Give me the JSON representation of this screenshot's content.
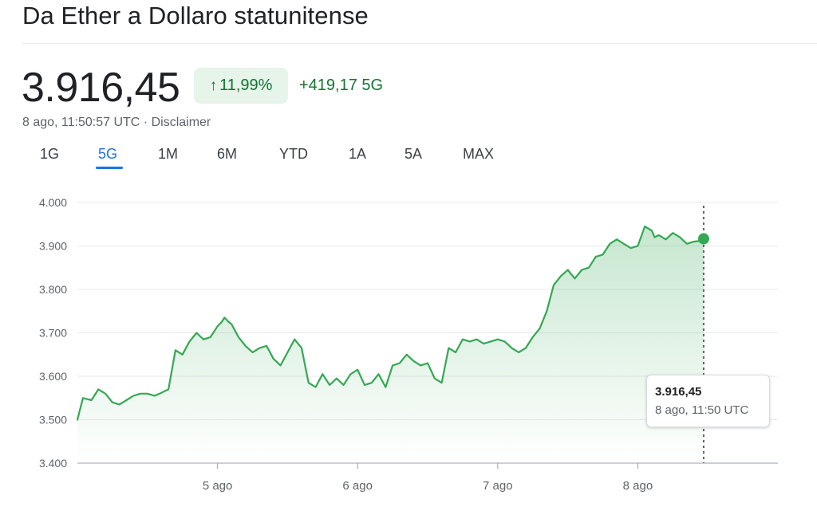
{
  "header": {
    "title": "Da Ether a Dollaro statunitense"
  },
  "quote": {
    "price": "3.916,45",
    "change_percent": "11,99%",
    "change_arrow_icon": "arrow-up-icon",
    "change_abs": "+419,17 5G",
    "timestamp": "8 ago, 11:50:57 UTC · ",
    "disclaimer": "Disclaimer"
  },
  "tabs": [
    "1G",
    "5G",
    "1M",
    "6M",
    "YTD",
    "1A",
    "5A",
    "MAX"
  ],
  "active_tab": "5G",
  "colors": {
    "line": "#34a853",
    "positive_text": "#137333",
    "positive_bg": "#e6f4ea",
    "accent": "#1a73e8"
  },
  "tooltip": {
    "value": "3.916,45",
    "time": "8 ago, 11:50 UTC"
  },
  "chart_data": {
    "type": "area",
    "x_tick_labels": [
      "5 ago",
      "6 ago",
      "7 ago",
      "8 ago"
    ],
    "y_tick_labels": [
      "4.000",
      "3.900",
      "3.800",
      "3.700",
      "3.600",
      "3.500",
      "3.400"
    ],
    "ylim": [
      3400,
      4000
    ],
    "xlim": [
      0,
      5
    ],
    "grid": true,
    "series": [
      {
        "x": [
          0.0,
          0.04,
          0.1,
          0.15,
          0.2,
          0.25,
          0.3,
          0.35,
          0.4,
          0.45,
          0.5,
          0.55,
          0.6,
          0.65,
          0.7,
          0.75,
          0.8,
          0.85,
          0.9,
          0.95,
          1.0,
          1.03,
          1.05,
          1.08,
          1.1,
          1.15,
          1.2,
          1.25,
          1.3,
          1.35,
          1.4,
          1.45,
          1.5,
          1.55,
          1.6,
          1.65,
          1.7,
          1.75,
          1.8,
          1.85,
          1.9,
          1.95,
          2.0,
          2.05,
          2.1,
          2.15,
          2.2,
          2.25,
          2.3,
          2.35,
          2.4,
          2.45,
          2.5,
          2.55,
          2.6,
          2.65,
          2.7,
          2.75,
          2.8,
          2.85,
          2.9,
          2.95,
          3.0,
          3.05,
          3.1,
          3.15,
          3.2,
          3.25,
          3.3,
          3.35,
          3.4,
          3.45,
          3.5,
          3.55,
          3.6,
          3.65,
          3.7,
          3.75,
          3.8,
          3.85,
          3.9,
          3.95,
          4.0,
          4.05,
          4.1,
          4.12,
          4.15,
          4.2,
          4.25,
          4.3,
          4.35,
          4.4,
          4.45,
          4.47
        ],
        "y": [
          3500,
          3550,
          3545,
          3570,
          3560,
          3540,
          3535,
          3545,
          3555,
          3560,
          3560,
          3555,
          3562,
          3570,
          3660,
          3650,
          3680,
          3700,
          3685,
          3690,
          3715,
          3725,
          3735,
          3725,
          3720,
          3690,
          3670,
          3655,
          3665,
          3670,
          3640,
          3625,
          3655,
          3685,
          3665,
          3585,
          3575,
          3605,
          3580,
          3595,
          3580,
          3605,
          3615,
          3580,
          3585,
          3605,
          3575,
          3625,
          3630,
          3650,
          3635,
          3625,
          3630,
          3595,
          3585,
          3665,
          3655,
          3685,
          3680,
          3685,
          3675,
          3680,
          3685,
          3680,
          3665,
          3655,
          3665,
          3690,
          3710,
          3750,
          3810,
          3830,
          3845,
          3825,
          3845,
          3850,
          3875,
          3880,
          3905,
          3915,
          3905,
          3895,
          3900,
          3945,
          3935,
          3920,
          3925,
          3915,
          3930,
          3920,
          3905,
          3910,
          3912,
          3916.45
        ]
      }
    ],
    "last_point": {
      "x": 4.47,
      "y": 3916.45
    }
  }
}
